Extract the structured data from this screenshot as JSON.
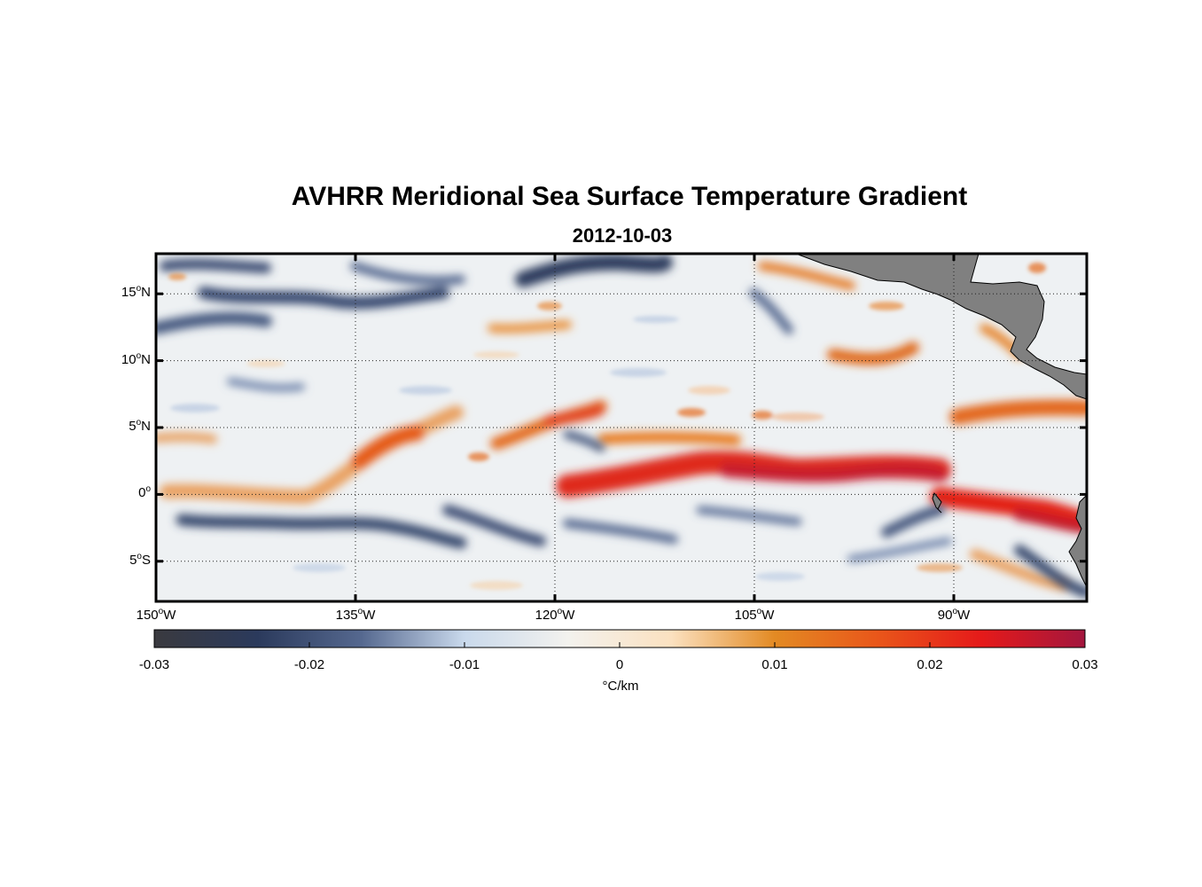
{
  "title": "AVHRR Meridional Sea Surface Temperature Gradient",
  "subtitle": "2012-10-03",
  "map": {
    "lon_ticks": [
      {
        "deg": "150",
        "hem": "W",
        "value": -150
      },
      {
        "deg": "135",
        "hem": "W",
        "value": -135
      },
      {
        "deg": "120",
        "hem": "W",
        "value": -120
      },
      {
        "deg": "105",
        "hem": "W",
        "value": -105
      },
      {
        "deg": "90",
        "hem": "W",
        "value": -90
      }
    ],
    "lat_ticks": [
      {
        "deg": "15",
        "hem": "N",
        "value": 15
      },
      {
        "deg": "10",
        "hem": "N",
        "value": 10
      },
      {
        "deg": "5",
        "hem": "N",
        "value": 5
      },
      {
        "deg": "0",
        "hem": "",
        "value": 0
      },
      {
        "deg": "5",
        "hem": "S",
        "value": -5
      }
    ],
    "lon_range": [
      -150,
      -80
    ],
    "lat_range": [
      -8,
      18
    ],
    "land_color": "#808080",
    "grid": "dotted"
  },
  "colorbar": {
    "ticks": [
      "-0.03",
      "-0.02",
      "-0.01",
      "0",
      "0.01",
      "0.02",
      "0.03"
    ],
    "range": [
      -0.03,
      0.03
    ],
    "units": "°C/km",
    "colors": [
      "#3a3a3f",
      "#2b3a5c",
      "#55688f",
      "#c9d9ec",
      "#f3f2ee",
      "#fbe1c0",
      "#e38a23",
      "#e9561a",
      "#e51a1a",
      "#a3163e"
    ]
  }
}
